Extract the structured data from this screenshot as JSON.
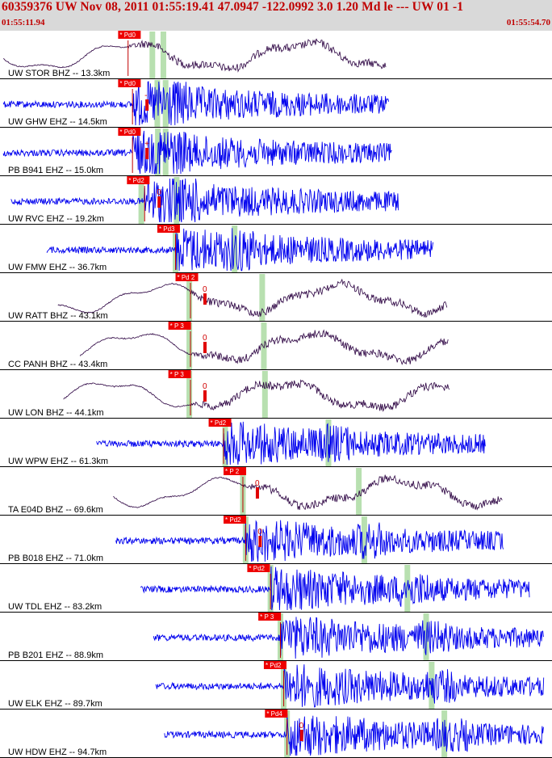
{
  "header": {
    "title": "60359376 UW Nov 08, 2011 01:55:19.41    47.0947 -122.0992  3.0 1.20 Md le --- UW 01   -1",
    "start_time": "01:55:11.94",
    "end_time": "01:55:54.70"
  },
  "colors": {
    "header_bg": "#d9d9d9",
    "title": "#c00000",
    "trace_blue": "#0000ee",
    "trace_purple": "#2a0040",
    "phase_tag": "#ee0000",
    "window": "#b8e0b0"
  },
  "chart_data": {
    "type": "line",
    "title": "60359376 UW Nov 08, 2011 01:55:19.41",
    "time_range": [
      "01:55:11.94",
      "01:55:54.70"
    ],
    "grid": false,
    "traces": [
      {
        "label": "UW STOR BHZ -- 13.3km",
        "phase": "Pd0",
        "pick_mark": "",
        "color": "purple",
        "type": "long",
        "tag_at": 0.214,
        "onset": 0.232,
        "win1": 0.276,
        "win2": 0.296,
        "end": 0.7,
        "pre_start": 0.0
      },
      {
        "label": "UW GHW EHZ -- 14.5km",
        "phase": "Pd0",
        "pick_mark": "-",
        "color": "blue",
        "type": "short",
        "tag_at": 0.214,
        "onset": 0.24,
        "win1": 0.285,
        "win2": 0.3,
        "end": 0.705,
        "pre_start": 0.0
      },
      {
        "label": "PB B941 EHZ -- 15.0km",
        "phase": "Pd0",
        "pick_mark": "+",
        "color": "blue",
        "type": "short",
        "tag_at": 0.214,
        "onset": 0.24,
        "win1": 0.286,
        "win2": 0.3,
        "end": 0.71,
        "pre_start": 0.0
      },
      {
        "label": "UW RVC EHZ -- 19.2km",
        "phase": "Pd2",
        "pick_mark": "0",
        "color": "blue",
        "type": "short",
        "tag_at": 0.23,
        "onset": 0.262,
        "win1": 0.256,
        "win2": 0.32,
        "end": 0.722,
        "pre_start": 0.02
      },
      {
        "label": "UW FMW EHZ -- 36.7km",
        "phase": "Pd3",
        "pick_mark": "",
        "color": "blue",
        "type": "short",
        "tag_at": 0.285,
        "onset": 0.318,
        "win1": 0.318,
        "win2": 0.425,
        "end": 0.785,
        "pre_start": 0.085
      },
      {
        "label": "UW RATT BHZ -- 43.1km",
        "phase": "Pd 2",
        "pick_mark": "0",
        "color": "purple",
        "type": "long",
        "tag_at": 0.318,
        "onset": 0.345,
        "win1": 0.343,
        "win2": 0.475,
        "end": 0.81,
        "pre_start": 0.105
      },
      {
        "label": "CC PANH BHZ -- 43.4km",
        "phase": "P 3",
        "pick_mark": "0",
        "color": "purple",
        "type": "long",
        "tag_at": 0.305,
        "onset": 0.345,
        "win1": 0.343,
        "win2": 0.478,
        "end": 0.812,
        "pre_start": 0.145
      },
      {
        "label": "UW LON BHZ -- 44.1km",
        "phase": "P 3",
        "pick_mark": "0",
        "color": "purple",
        "type": "long",
        "tag_at": 0.305,
        "onset": 0.345,
        "win1": 0.343,
        "win2": 0.48,
        "end": 0.815,
        "pre_start": 0.115
      },
      {
        "label": "UW WPW EHZ -- 61.3km",
        "phase": "Pd2",
        "pick_mark": "",
        "color": "blue",
        "type": "short",
        "tag_at": 0.378,
        "onset": 0.405,
        "win1": 0.408,
        "win2": 0.595,
        "end": 0.88,
        "pre_start": 0.175
      },
      {
        "label": "TA E04D BHZ -- 69.6km",
        "phase": "P 2",
        "pick_mark": "0",
        "color": "purple",
        "type": "long",
        "tag_at": 0.405,
        "onset": 0.44,
        "win1": 0.44,
        "win2": 0.65,
        "end": 0.91,
        "pre_start": 0.205
      },
      {
        "label": "PB B018 EHZ -- 71.0km",
        "phase": "Pd2",
        "pick_mark": "0",
        "color": "blue",
        "type": "short",
        "tag_at": 0.405,
        "onset": 0.445,
        "win1": 0.445,
        "win2": 0.66,
        "end": 0.912,
        "pre_start": 0.21
      },
      {
        "label": "UW TDL EHZ -- 83.2km",
        "phase": "Pd2",
        "pick_mark": "",
        "color": "blue",
        "type": "short",
        "tag_at": 0.448,
        "onset": 0.49,
        "win1": 0.49,
        "win2": 0.738,
        "end": 0.96,
        "pre_start": 0.255
      },
      {
        "label": "PB B201 EHZ -- 88.9km",
        "phase": "P 3",
        "pick_mark": "",
        "color": "blue",
        "type": "short",
        "tag_at": 0.468,
        "onset": 0.508,
        "win1": 0.508,
        "win2": 0.772,
        "end": 0.985,
        "pre_start": 0.278
      },
      {
        "label": "UW ELK EHZ -- 89.7km",
        "phase": "Pd2",
        "pick_mark": "",
        "color": "blue",
        "type": "short",
        "tag_at": 0.478,
        "onset": 0.514,
        "win1": 0.514,
        "win2": 0.782,
        "end": 0.985,
        "pre_start": 0.282
      },
      {
        "label": "UW HDW EHZ -- 94.7km",
        "phase": "Pd4",
        "pick_mark": "0",
        "color": "blue",
        "type": "short",
        "tag_at": 0.48,
        "onset": 0.52,
        "win1": 0.52,
        "win2": 0.805,
        "end": 0.985,
        "pre_start": 0.298
      }
    ]
  }
}
